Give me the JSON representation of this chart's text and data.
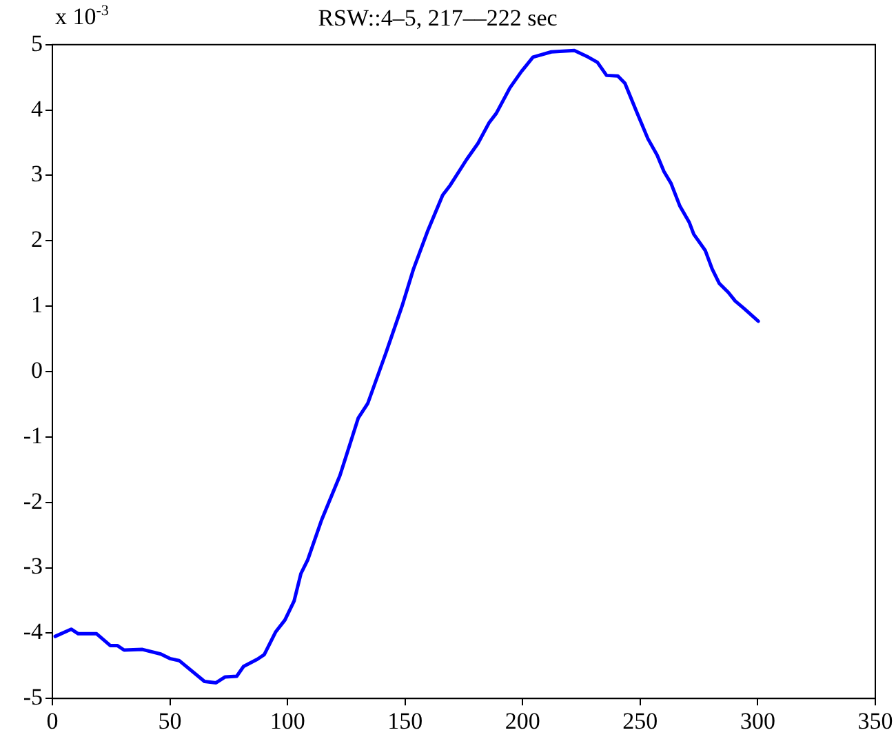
{
  "chart_data": {
    "type": "line",
    "title": "RSW::4–5, 217––222 sec",
    "annotations": [
      "x 10$^{-3}$"
    ],
    "xlim": [
      0,
      350
    ],
    "xticks": [
      0,
      50,
      100,
      150,
      200,
      250,
      300,
      350
    ],
    "ylim": [
      -5,
      5
    ],
    "yticks": [
      -5,
      -4,
      -3,
      -2,
      -1,
      0,
      1,
      2,
      3,
      4,
      5
    ],
    "grid": false,
    "legend": false,
    "marker": "none",
    "line_style": "solid",
    "series": [
      {
        "color": "#0000ff",
        "x": [
          1.2,
          8,
          11,
          18.8,
          24.6,
          27.6,
          30.5,
          38.3,
          46.1,
          50,
          53.9,
          64.7,
          69.6,
          73.5,
          78.4,
          81.3,
          87.2,
          90.1,
          95,
          98.9,
          102.8,
          105.7,
          108.6,
          114.5,
          122.3,
          130.1,
          134.1,
          141.9,
          148.7,
          153.6,
          159.5,
          166,
          169.2,
          176.1,
          181,
          185.8,
          188.8,
          194.6,
          199.5,
          204.4,
          212.2,
          222,
          227.9,
          231.8,
          235.7,
          240.5,
          243.5,
          248.4,
          253.3,
          257.2,
          260.1,
          263.1,
          266.9,
          270.9,
          272.8,
          277.7,
          280.6,
          283.6,
          287.5,
          290.4,
          294.3,
          300.2
        ],
        "values": [
          -4.05,
          -3.94,
          -4.01,
          -4.01,
          -4.19,
          -4.19,
          -4.26,
          -4.25,
          -4.32,
          -4.39,
          -4.42,
          -4.74,
          -4.76,
          -4.67,
          -4.66,
          -4.51,
          -4.4,
          -4.33,
          -3.98,
          -3.8,
          -3.51,
          -3.09,
          -2.88,
          -2.27,
          -1.59,
          -0.71,
          -0.49,
          0.29,
          1,
          1.57,
          2.14,
          2.7,
          2.85,
          3.24,
          3.49,
          3.81,
          3.95,
          4.34,
          4.59,
          4.81,
          4.89,
          4.91,
          4.81,
          4.73,
          4.53,
          4.52,
          4.41,
          3.98,
          3.56,
          3.31,
          3.06,
          2.88,
          2.53,
          2.28,
          2.1,
          1.85,
          1.57,
          1.35,
          1.21,
          1.08,
          0.96,
          0.77
        ]
      }
    ]
  }
}
